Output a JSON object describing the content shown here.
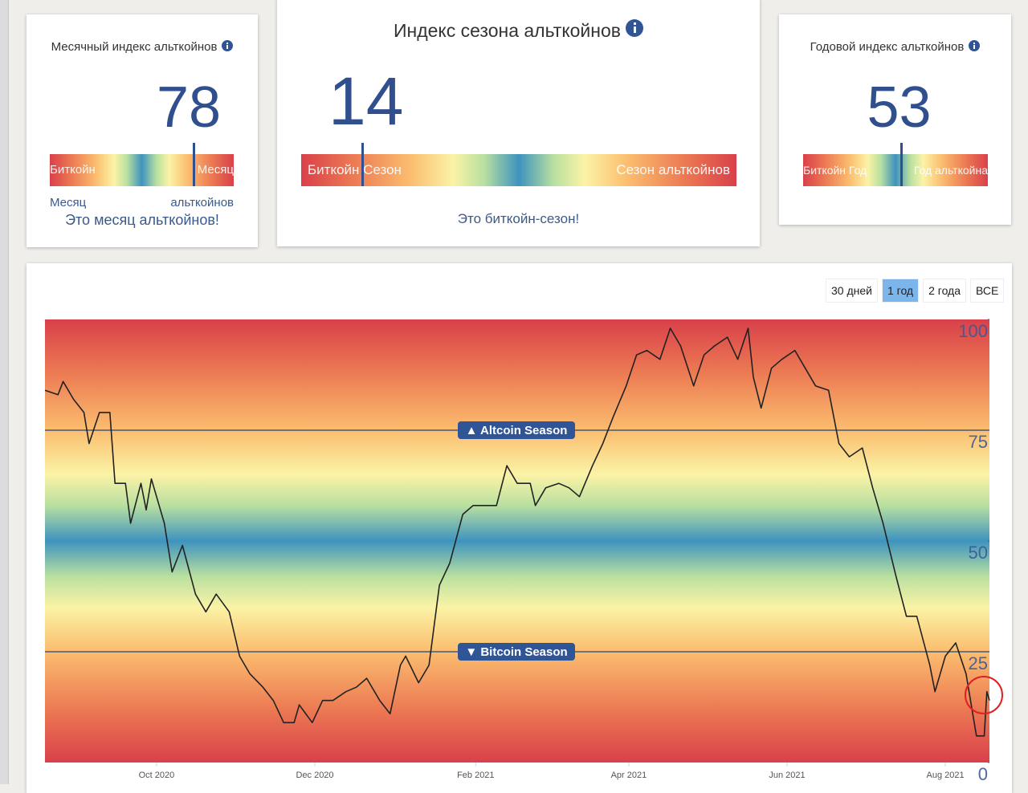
{
  "monthly": {
    "title": "Месячный индекс альткойнов",
    "value": 78,
    "label_left": "Биткойн",
    "label_right": "Месяц",
    "caption_left": "Месяц",
    "caption_right": "альткойнов",
    "message": "Это месяц альткойнов!"
  },
  "season": {
    "title": "Индекс сезона альткойнов",
    "value": 14,
    "label_left": "Биткойн Сезон",
    "label_right": "Сезон альткойнов",
    "message": "Это биткойн-сезон!"
  },
  "yearly": {
    "title": "Годовой индекс альткойнов",
    "value": 53,
    "label_left": "Биткойн Год",
    "label_right": "Год альткойна"
  },
  "range_buttons": [
    "30 дней",
    "1 год",
    "2 года",
    "ВСЕ"
  ],
  "active_range": "1 год",
  "chart_data": {
    "type": "line",
    "x": [
      0,
      5,
      7,
      11,
      15,
      17,
      21,
      25,
      27,
      31,
      33,
      37,
      39,
      41,
      46,
      49,
      53,
      58,
      62,
      66,
      71,
      75,
      79,
      84,
      88,
      92,
      96,
      98,
      103,
      107,
      111,
      116,
      120,
      124,
      129,
      133,
      137,
      139,
      144,
      148,
      152,
      156,
      161,
      165,
      169,
      174,
      178,
      182,
      187,
      189,
      193,
      198,
      202,
      206,
      211,
      215,
      219,
      224,
      228,
      232,
      237,
      241,
      245,
      250,
      254,
      258,
      263,
      267,
      271,
      273,
      276,
      280,
      284,
      289,
      293,
      297,
      302,
      306,
      310,
      315,
      319,
      323,
      328,
      332,
      336,
      341,
      343,
      347,
      351,
      355,
      359,
      362,
      363,
      364
    ],
    "series": [
      {
        "color": "#222222",
        "values": [
          84,
          83,
          86,
          82,
          79,
          72,
          79,
          79,
          63,
          63,
          54,
          63,
          57,
          64,
          54,
          43,
          49,
          38,
          34,
          38,
          34,
          24,
          20,
          17,
          14,
          9,
          9,
          13,
          9,
          14,
          14,
          16,
          17,
          19,
          14,
          11,
          22,
          24,
          18,
          22,
          40,
          45,
          56,
          58,
          58,
          58,
          67,
          63,
          63,
          58,
          62,
          63,
          62,
          60,
          67,
          72,
          78,
          85,
          92,
          93,
          91,
          98,
          94,
          85,
          92,
          94,
          96,
          91,
          98,
          87,
          80,
          89,
          91,
          93,
          89,
          85,
          84,
          72,
          69,
          71,
          62,
          54,
          42,
          33,
          33,
          22,
          16,
          24,
          27,
          20,
          6,
          6,
          16,
          14
        ]
      }
    ],
    "xlim": [
      0,
      364
    ],
    "xticks": [
      {
        "value": 43,
        "label": "Oct 2020"
      },
      {
        "value": 104,
        "label": "Dec 2020"
      },
      {
        "value": 166,
        "label": "Feb 2021"
      },
      {
        "value": 225,
        "label": "Apr 2021"
      },
      {
        "value": 286,
        "label": "Jun 2021"
      },
      {
        "value": 347,
        "label": "Aug 2021"
      }
    ],
    "ylim": [
      0,
      100
    ],
    "yticks": [
      0,
      25,
      50,
      75,
      100
    ],
    "bands": [
      {
        "value": 75,
        "label": "▲ Altcoin Season"
      },
      {
        "value": 25,
        "label": "▼ Bitcoin Season"
      }
    ]
  }
}
